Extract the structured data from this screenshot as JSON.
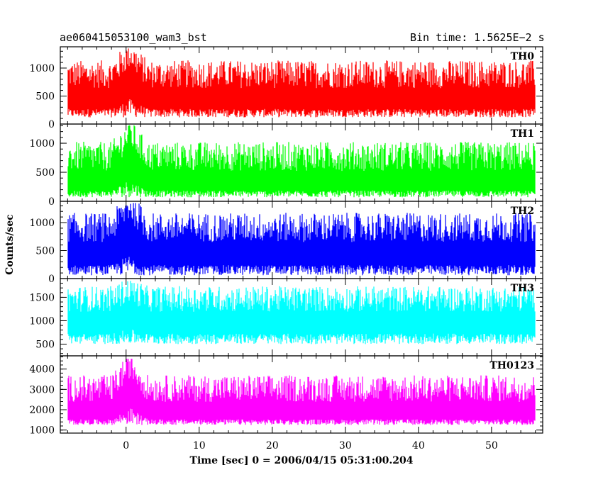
{
  "chart_data": {
    "type": "line",
    "title_left": "ae060415053100_wam3_bst",
    "title_right": "Bin time: 1.5625E−2 s",
    "xlabel": "Time [sec] 0 = 2006/04/15 05:31:00.204",
    "ylabel": "Counts/sec",
    "xlim": [
      -9,
      57
    ],
    "x_range": [
      -8,
      56
    ],
    "x_ticks": [
      0,
      10,
      20,
      30,
      40,
      50
    ],
    "panels": [
      {
        "name": "TH0",
        "color": "#ff0000",
        "ylim": [
          0,
          1380
        ],
        "y_ticks": [
          0,
          500,
          1000
        ],
        "base": 120,
        "mean": 420,
        "peak": 1350,
        "burst_mean": 780
      },
      {
        "name": "TH1",
        "color": "#00ff00",
        "ylim": [
          0,
          1330
        ],
        "y_ticks": [
          0,
          500,
          1000
        ],
        "base": 70,
        "mean": 300,
        "peak": 1310,
        "burst_mean": 700
      },
      {
        "name": "TH2",
        "color": "#0000ff",
        "ylim": [
          0,
          1380
        ],
        "y_ticks": [
          0,
          500,
          1000
        ],
        "base": 60,
        "mean": 420,
        "peak": 1350,
        "burst_mean": 800
      },
      {
        "name": "TH3",
        "color": "#00ffff",
        "ylim": [
          250,
          1900
        ],
        "y_ticks": [
          500,
          1000,
          1500
        ],
        "base": 500,
        "mean": 950,
        "peak": 1850,
        "burst_mean": 1150
      },
      {
        "name": "TH0123",
        "color": "#ff00ff",
        "ylim": [
          850,
          4650
        ],
        "y_ticks": [
          1000,
          2000,
          3000,
          4000
        ],
        "base": 1250,
        "mean": 1800,
        "peak": 4500,
        "burst_mean": 3000
      }
    ]
  }
}
